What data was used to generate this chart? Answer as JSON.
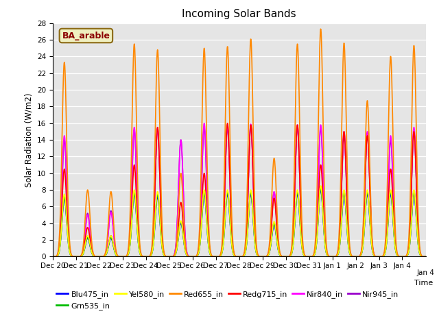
{
  "title": "Incoming Solar Bands",
  "xlabel": "Time",
  "ylabel": "Solar Radiation (W/m2)",
  "annotation": "BA_arable",
  "ylim": [
    0,
    28
  ],
  "series_colors": {
    "Blu475_in": "#0000ff",
    "Grn535_in": "#00bb00",
    "Yel580_in": "#ffff00",
    "Red655_in": "#ff8800",
    "Redg715_in": "#ff0000",
    "Nir840_in": "#ff00ff",
    "Nir945_in": "#9900cc"
  },
  "tick_labels": [
    "Dec 20",
    "Dec 21",
    "Dec 22",
    "Dec 23",
    "Dec 24",
    "Dec 25",
    "Dec 26",
    "Dec 27",
    "Dec 28",
    "Dec 29",
    "Dec 30",
    "Dec 31",
    "Jan 1",
    "Jan 2",
    "Jan 3",
    "Jan 4"
  ],
  "n_days": 16,
  "day_peaks": {
    "Red655_in": [
      23.3,
      8.0,
      7.8,
      25.5,
      24.8,
      10.0,
      25.0,
      25.2,
      26.1,
      11.8,
      25.5,
      27.3,
      25.6,
      18.7,
      24.0,
      25.3
    ],
    "Redg715_in": [
      10.5,
      3.5,
      2.5,
      11.0,
      15.5,
      6.5,
      10.0,
      16.0,
      15.8,
      7.0,
      15.8,
      11.0,
      15.0,
      14.5,
      10.5,
      15.0
    ],
    "Nir840_in": [
      14.5,
      5.0,
      5.3,
      15.5,
      15.5,
      14.0,
      16.0,
      15.8,
      15.9,
      7.8,
      15.8,
      15.8,
      15.0,
      15.0,
      14.5,
      15.5
    ],
    "Nir945_in": [
      14.0,
      5.2,
      5.5,
      15.2,
      15.3,
      14.0,
      15.5,
      15.5,
      15.7,
      7.7,
      15.5,
      15.5,
      14.5,
      14.8,
      14.0,
      15.0
    ],
    "Blu475_in": [
      7.0,
      2.2,
      2.2,
      7.5,
      7.2,
      4.0,
      7.5,
      7.5,
      7.5,
      3.8,
      7.5,
      8.0,
      7.5,
      7.5,
      7.5,
      7.5
    ],
    "Grn535_in": [
      7.2,
      2.3,
      2.3,
      7.7,
      7.5,
      4.2,
      7.8,
      7.8,
      7.8,
      4.0,
      7.8,
      8.2,
      7.8,
      7.8,
      7.8,
      7.8
    ],
    "Yel580_in": [
      7.5,
      2.5,
      2.5,
      8.0,
      7.8,
      4.3,
      8.0,
      8.0,
      8.0,
      4.2,
      8.0,
      8.5,
      8.0,
      8.0,
      8.0,
      8.0
    ]
  },
  "background_color": "#e5e5e5",
  "plot_order": [
    "Nir945_in",
    "Nir840_in",
    "Redg715_in",
    "Blu475_in",
    "Grn535_in",
    "Yel580_in",
    "Red655_in"
  ],
  "legend_order": [
    "Blu475_in",
    "Grn535_in",
    "Yel580_in",
    "Red655_in",
    "Redg715_in",
    "Nir840_in",
    "Nir945_in"
  ]
}
